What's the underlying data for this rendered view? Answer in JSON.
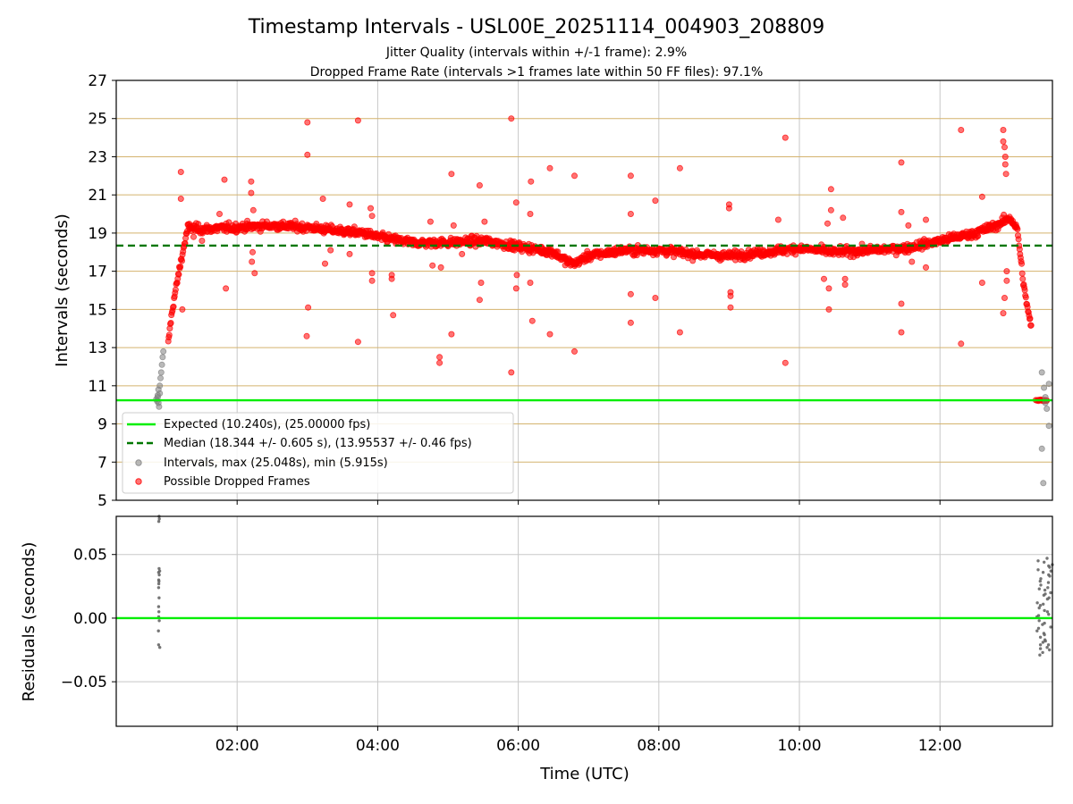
{
  "title": "Timestamp Intervals - USL00E_20251114_004903_208809",
  "subtitle_1": "Jitter Quality (intervals within +/-1 frame): 2.9%",
  "subtitle_2": "Dropped Frame Rate (intervals >1 frames late within 50 FF files): 97.1%",
  "chart_data": [
    {
      "type": "scatter",
      "ylabel": "Intervals (seconds)",
      "xlabel": "",
      "xlim_hours": [
        0.28,
        13.6
      ],
      "ylim": [
        5,
        27
      ],
      "yticks": [
        "5",
        "7",
        "9",
        "11",
        "13",
        "15",
        "17",
        "19",
        "21",
        "23",
        "25",
        "27"
      ],
      "ytick_values": [
        5,
        7,
        9,
        11,
        13,
        15,
        17,
        19,
        21,
        23,
        25,
        27
      ],
      "xtick_hours": [
        2,
        4,
        6,
        8,
        10,
        12
      ],
      "xticks": [
        "02:00",
        "04:00",
        "06:00",
        "08:00",
        "10:00",
        "12:00"
      ],
      "frame_lines_every_seconds": [
        5,
        7,
        9,
        11,
        13,
        15,
        17,
        19,
        21,
        23,
        25,
        27
      ],
      "expected": 10.24,
      "median": 18.344,
      "legend_position": "lower-left",
      "legend": [
        "Expected (10.240s), (25.00000 fps)",
        "Median (18.344 +/- 0.605 s), (13.95537 +/- 0.46 fps)",
        "Intervals, max (25.048s), min (5.915s)",
        "Possible Dropped Frames"
      ],
      "trend_hours": [
        0.9,
        1.0,
        1.05,
        1.1,
        1.2,
        1.3,
        1.5,
        2.0,
        2.5,
        3.0,
        3.5,
        3.8,
        4.0,
        4.5,
        5.0,
        5.5,
        6.0,
        6.5,
        6.7,
        6.8,
        7.0,
        7.5,
        8.0,
        8.5,
        9.0,
        9.5,
        10.0,
        10.5,
        11.0,
        11.5,
        12.0,
        12.5,
        12.8,
        13.0,
        13.1,
        13.2,
        13.3,
        13.4
      ],
      "trend_values": [
        10.3,
        12.5,
        14.2,
        15.5,
        17.5,
        19.3,
        19.2,
        19.3,
        19.4,
        19.3,
        19.1,
        19.0,
        18.8,
        18.5,
        18.5,
        18.6,
        18.3,
        18.0,
        17.5,
        17.4,
        17.8,
        18.1,
        18.1,
        17.9,
        17.8,
        18.0,
        18.2,
        18.0,
        18.1,
        18.2,
        18.6,
        19.0,
        19.4,
        19.8,
        19.2,
        16.0,
        14.0,
        10.25
      ],
      "outliers": [
        [
          1.2,
          22.2
        ],
        [
          1.2,
          20.8
        ],
        [
          1.22,
          15.0
        ],
        [
          1.38,
          18.8
        ],
        [
          1.5,
          18.6
        ],
        [
          1.75,
          20.0
        ],
        [
          1.82,
          21.8
        ],
        [
          1.84,
          16.1
        ],
        [
          2.2,
          21.7
        ],
        [
          2.2,
          21.1
        ],
        [
          2.21,
          17.5
        ],
        [
          2.22,
          18.0
        ],
        [
          2.25,
          16.9
        ],
        [
          2.23,
          20.2
        ],
        [
          3.0,
          24.8
        ],
        [
          3.0,
          23.1
        ],
        [
          3.01,
          15.1
        ],
        [
          2.99,
          13.6
        ],
        [
          3.22,
          20.8
        ],
        [
          3.25,
          17.4
        ],
        [
          3.33,
          18.1
        ],
        [
          3.72,
          24.9
        ],
        [
          3.72,
          13.3
        ],
        [
          3.6,
          20.5
        ],
        [
          3.6,
          17.9
        ],
        [
          3.9,
          20.3
        ],
        [
          3.92,
          16.5
        ],
        [
          3.92,
          16.9
        ],
        [
          3.92,
          19.9
        ],
        [
          4.2,
          16.8
        ],
        [
          4.2,
          16.6
        ],
        [
          4.22,
          14.7
        ],
        [
          4.75,
          19.6
        ],
        [
          4.78,
          17.3
        ],
        [
          4.88,
          12.5
        ],
        [
          4.88,
          12.2
        ],
        [
          4.9,
          17.2
        ],
        [
          5.05,
          22.1
        ],
        [
          5.05,
          13.7
        ],
        [
          5.08,
          19.4
        ],
        [
          5.2,
          17.9
        ],
        [
          5.45,
          21.5
        ],
        [
          5.45,
          15.5
        ],
        [
          5.52,
          19.6
        ],
        [
          5.47,
          16.4
        ],
        [
          5.9,
          25.0
        ],
        [
          5.9,
          11.7
        ],
        [
          5.97,
          20.6
        ],
        [
          5.97,
          16.1
        ],
        [
          5.98,
          16.8
        ],
        [
          6.18,
          21.7
        ],
        [
          6.17,
          20.0
        ],
        [
          6.17,
          16.4
        ],
        [
          6.2,
          14.4
        ],
        [
          6.45,
          22.4
        ],
        [
          6.45,
          13.7
        ],
        [
          6.8,
          22.0
        ],
        [
          6.8,
          12.8
        ],
        [
          7.6,
          22.0
        ],
        [
          7.6,
          20.0
        ],
        [
          7.6,
          15.8
        ],
        [
          7.6,
          14.3
        ],
        [
          7.95,
          20.7
        ],
        [
          7.95,
          15.6
        ],
        [
          8.3,
          22.4
        ],
        [
          8.3,
          13.8
        ],
        [
          9.0,
          20.5
        ],
        [
          9.0,
          20.3
        ],
        [
          9.02,
          15.9
        ],
        [
          9.02,
          15.7
        ],
        [
          9.02,
          15.1
        ],
        [
          9.7,
          19.7
        ],
        [
          9.8,
          24.0
        ],
        [
          9.8,
          12.2
        ],
        [
          10.35,
          16.6
        ],
        [
          10.4,
          19.5
        ],
        [
          10.45,
          21.3
        ],
        [
          10.45,
          20.2
        ],
        [
          10.42,
          16.1
        ],
        [
          10.42,
          15.0
        ],
        [
          10.62,
          19.8
        ],
        [
          10.65,
          16.6
        ],
        [
          10.65,
          16.3
        ],
        [
          11.45,
          22.7
        ],
        [
          11.45,
          20.1
        ],
        [
          11.45,
          15.3
        ],
        [
          11.45,
          13.8
        ],
        [
          11.55,
          19.4
        ],
        [
          11.6,
          17.5
        ],
        [
          11.8,
          19.7
        ],
        [
          11.8,
          17.2
        ],
        [
          12.3,
          24.4
        ],
        [
          12.3,
          13.2
        ],
        [
          12.45,
          18.8
        ],
        [
          12.6,
          20.9
        ],
        [
          12.6,
          16.4
        ],
        [
          12.9,
          24.4
        ],
        [
          12.9,
          23.8
        ],
        [
          12.92,
          23.5
        ],
        [
          12.93,
          23.0
        ],
        [
          12.93,
          22.6
        ],
        [
          12.94,
          22.1
        ],
        [
          12.9,
          14.8
        ],
        [
          12.92,
          15.6
        ],
        [
          12.95,
          16.5
        ],
        [
          12.95,
          17.0
        ]
      ],
      "normal_points": [
        [
          0.85,
          10.3
        ],
        [
          0.86,
          10.2
        ],
        [
          0.87,
          10.4
        ],
        [
          0.88,
          10.1
        ],
        [
          0.89,
          9.9
        ],
        [
          0.9,
          10.6
        ],
        [
          0.9,
          11.0
        ],
        [
          0.91,
          11.4
        ],
        [
          0.92,
          11.7
        ],
        [
          0.93,
          12.1
        ],
        [
          0.94,
          12.5
        ],
        [
          0.95,
          12.8
        ],
        [
          0.88,
          10.8
        ],
        [
          0.87,
          10.5
        ],
        [
          13.45,
          11.7
        ],
        [
          13.48,
          10.9
        ],
        [
          13.5,
          10.1
        ],
        [
          13.52,
          9.8
        ],
        [
          13.55,
          8.9
        ],
        [
          13.45,
          7.7
        ],
        [
          13.47,
          5.9
        ],
        [
          13.55,
          11.1
        ],
        [
          13.5,
          10.4
        ]
      ]
    },
    {
      "type": "scatter",
      "xlabel": "Time (UTC)",
      "ylabel": "Residuals (seconds)",
      "ylim": [
        -0.085,
        0.08
      ],
      "yticks": [
        "−0.05",
        "0.00",
        "0.05"
      ],
      "ytick_values": [
        -0.05,
        0.0,
        0.05
      ],
      "residuals_left_hours": [
        0.88,
        0.9
      ],
      "residuals_left": [
        0.078,
        0.08,
        0.076,
        0.039,
        0.036,
        0.034,
        0.03,
        0.027,
        0.024,
        0.016,
        0.009,
        0.005,
        0.001,
        -0.002,
        -0.01,
        -0.021,
        -0.023,
        0.029,
        0.037
      ],
      "residuals_right_hours": [
        13.38,
        13.6
      ],
      "residuals_right": [
        0.047,
        0.044,
        0.042,
        0.04,
        0.038,
        0.036,
        0.033,
        0.031,
        0.029,
        0.026,
        0.024,
        0.022,
        0.02,
        0.018,
        0.015,
        0.012,
        0.01,
        0.008,
        0.005,
        0.003,
        0.001,
        -0.002,
        -0.005,
        -0.007,
        -0.01,
        -0.013,
        -0.015,
        -0.017,
        -0.019,
        -0.021,
        -0.023,
        -0.025,
        -0.027,
        -0.029,
        0.045,
        0.034,
        0.023,
        0.011,
        -0.004,
        -0.018,
        0.041,
        0.028,
        0.016,
        0.002,
        -0.012,
        -0.024,
        0.037,
        0.019,
        0.006,
        -0.008,
        -0.021
      ]
    }
  ],
  "colors": {
    "expected": "#00ee00",
    "median": "#007700",
    "dropped": "#ff0000",
    "normal": "#808080",
    "frame_lines": "#d4b36e",
    "grid": "#c8c8c8"
  }
}
